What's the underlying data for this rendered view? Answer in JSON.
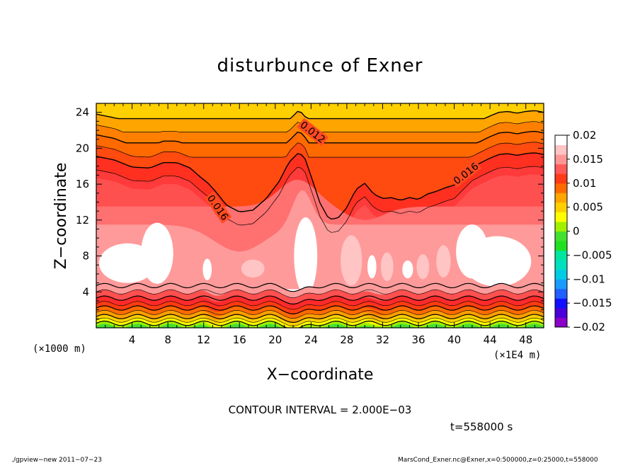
{
  "chart_data": {
    "type": "heatmap",
    "title": "disturbunce of Exner",
    "xlabel": "X−coordinate",
    "ylabel": "Z−coordinate",
    "x_unit_label": "(×1E4 m)",
    "y_unit_label": "(×1000 m)",
    "xlim": [
      0,
      50
    ],
    "ylim": [
      0,
      25
    ],
    "x_ticks": [
      "4",
      "8",
      "12",
      "16",
      "20",
      "24",
      "28",
      "32",
      "36",
      "40",
      "44",
      "48"
    ],
    "x_tick_values": [
      4,
      8,
      12,
      16,
      20,
      24,
      28,
      32,
      36,
      40,
      44,
      48
    ],
    "y_ticks": [
      "4",
      "8",
      "12",
      "16",
      "20",
      "24"
    ],
    "y_tick_values": [
      4,
      8,
      12,
      16,
      20,
      24
    ],
    "contour_interval_text": "CONTOUR INTERVAL = 2.000E−03",
    "time_text": "t=558000 s",
    "contour_labels": [
      {
        "text": "0.012",
        "x": 24.2,
        "y": 21.8,
        "angle": 38
      },
      {
        "text": "0.016",
        "x": 13.6,
        "y": 13.4,
        "angle": 55
      },
      {
        "text": "0.016",
        "x": 41.3,
        "y": 17.2,
        "angle": -38
      }
    ],
    "colorbar": {
      "labels": [
        "0.02",
        "0.015",
        "0.01",
        "0.005",
        "0",
        "−0.005",
        "−0.01",
        "−0.015",
        "−0.02"
      ],
      "values": [
        0.02,
        0.015,
        0.01,
        0.005,
        0,
        -0.005,
        -0.01,
        -0.015,
        -0.02
      ],
      "colors_bottom_to_top": [
        "#8a00c8",
        "#4a00d8",
        "#1010ff",
        "#2060ff",
        "#1a9cff",
        "#00cce6",
        "#00e0c0",
        "#00e6a0",
        "#20e020",
        "#44e030",
        "#a0f000",
        "#ffff00",
        "#ffd000",
        "#ffa500",
        "#ff6a00",
        "#ff3a18",
        "#ff5a5a",
        "#ff9696",
        "#ffc4c4",
        "#ffffff"
      ]
    },
    "profile_x": [
      0,
      2,
      4,
      6,
      7.5,
      9,
      10.5,
      11.5,
      12.5,
      13.5,
      14.5,
      16,
      17.5,
      19,
      20.5,
      21.5,
      22.5,
      23.2,
      24,
      25,
      26,
      27,
      28,
      29,
      30,
      31,
      32,
      33,
      34,
      35,
      36,
      37,
      38,
      39,
      40,
      41,
      42,
      43,
      44,
      45,
      46,
      47,
      48,
      49,
      50
    ],
    "profile_z": [
      18.2,
      17.8,
      17,
      16.9,
      17.5,
      17.5,
      16.9,
      16,
      15.2,
      14.1,
      12.8,
      12,
      12.2,
      13.5,
      15.5,
      17.5,
      18.5,
      18.3,
      16,
      13,
      11.2,
      11.3,
      12.5,
      14.5,
      15.2,
      14,
      13.5,
      13.6,
      13.3,
      13.6,
      13.4,
      14,
      14.3,
      14.7,
      15,
      16,
      17,
      17.5,
      18,
      18.4,
      18.5,
      18.3,
      18.5,
      18.6,
      18.4
    ]
  },
  "footer_left": "./gpview−new   2011−07−23",
  "footer_right": "MarsCond_Exner.nc@Exner,x=0:500000,z=0:25000,t=558000"
}
